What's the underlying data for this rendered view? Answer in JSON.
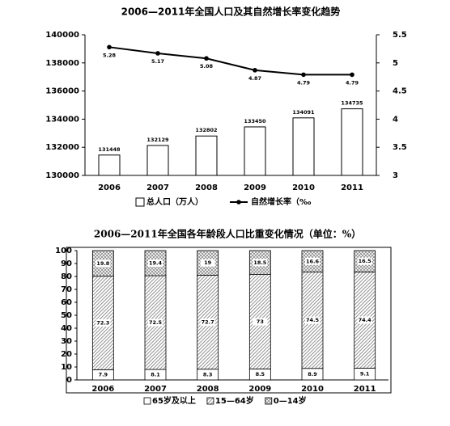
{
  "chart_data": [
    {
      "type": "combo",
      "title": "2006—2011年全国人口及其自然增长率变化趋势",
      "categories": [
        "2006",
        "2007",
        "2008",
        "2009",
        "2010",
        "2011"
      ],
      "series": [
        {
          "name": "总人口（万人）",
          "type": "bar",
          "color": "#ffffff",
          "values": [
            131448,
            132129,
            132802,
            133450,
            134091,
            134735
          ]
        },
        {
          "name": "自然增长率（‰",
          "type": "line",
          "axis": "y2",
          "color": "#000000",
          "values": [
            5.28,
            5.17,
            5.08,
            4.87,
            4.79,
            4.79
          ]
        }
      ],
      "ylim": [
        130000,
        140000
      ],
      "yticks": [
        130000,
        132000,
        134000,
        136000,
        138000,
        140000
      ],
      "y2lim": [
        3,
        5.5
      ],
      "y2ticks": [
        3,
        3.5,
        4,
        4.5,
        5,
        5.5
      ],
      "grid": false
    },
    {
      "type": "stacked_bar",
      "title": "2006—2011年全国各年龄段人口比重变化情况（单位：%）",
      "categories": [
        "2006",
        "2007",
        "2008",
        "2009",
        "2010",
        "2011"
      ],
      "series": [
        {
          "name": "65岁及以上",
          "color": "#ffffff",
          "pattern": "none",
          "values": [
            7.9,
            8.1,
            8.3,
            8.5,
            8.9,
            9.1
          ]
        },
        {
          "name": "15—64岁",
          "color": "#9a9a9a",
          "pattern": "diagonal",
          "values": [
            72.3,
            72.5,
            72.7,
            73,
            74.5,
            74.4
          ]
        },
        {
          "name": "0—14岁",
          "color": "#9a9a9a",
          "pattern": "crosshatch",
          "values": [
            19.8,
            19.4,
            19,
            18.5,
            16.6,
            16.5
          ]
        }
      ],
      "ylim": [
        0,
        100
      ],
      "yticks": [
        0,
        10,
        20,
        30,
        40,
        50,
        60,
        70,
        80,
        90,
        100
      ],
      "grid": false
    }
  ]
}
